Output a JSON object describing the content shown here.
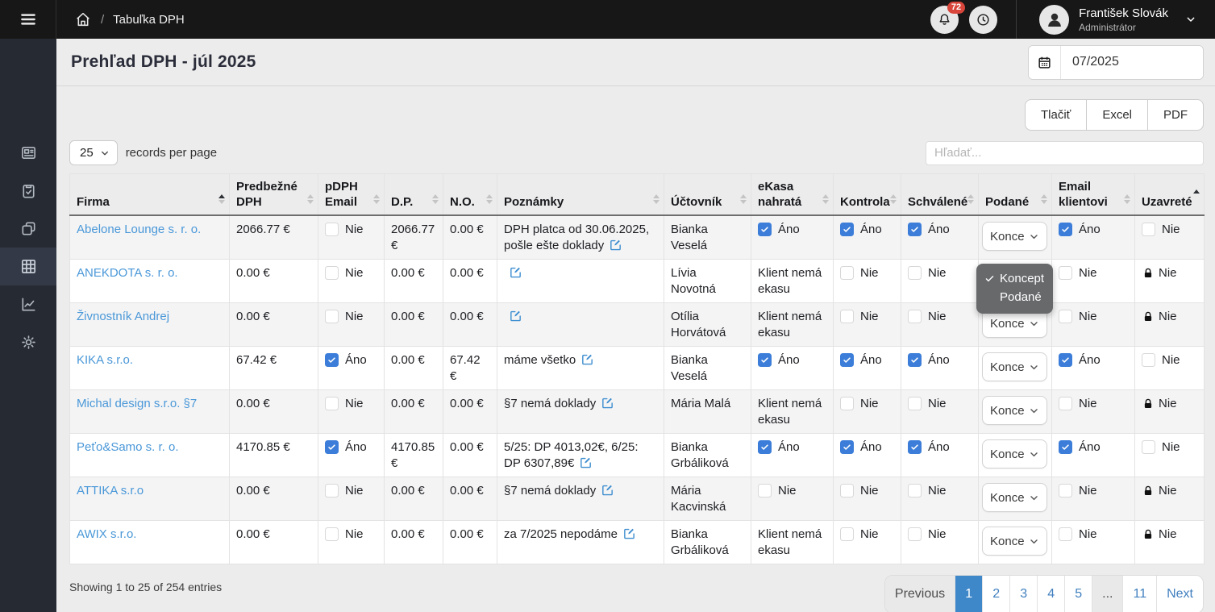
{
  "topbar": {
    "breadcrumb": "Tabuľka DPH",
    "notification_count": "72",
    "user": {
      "name": "František Slovák",
      "role": "Administrátor"
    }
  },
  "sidebar": {
    "items": [
      {
        "icon": "news-icon",
        "active": false
      },
      {
        "icon": "clipboard-check-icon",
        "active": false
      },
      {
        "icon": "copy-icon",
        "active": false
      },
      {
        "icon": "table-grid-icon",
        "active": true
      },
      {
        "icon": "chart-line-icon",
        "active": false
      },
      {
        "icon": "settings-gear-icon",
        "active": false
      }
    ]
  },
  "page": {
    "title": "Prehľad DPH - júl 2025",
    "date_value": "07/2025",
    "export_buttons": [
      "Tlačiť",
      "Excel",
      "PDF"
    ],
    "per_page": {
      "value": "25",
      "label": "records per page"
    },
    "search_placeholder": "Hľadať..."
  },
  "table": {
    "columns": [
      {
        "label": "Firma",
        "sort": "asc"
      },
      {
        "label": "Predbežné DPH",
        "sort": "both"
      },
      {
        "label": "pDPH Email",
        "sort": "both"
      },
      {
        "label": "D.P.",
        "sort": "both"
      },
      {
        "label": "N.O.",
        "sort": "both"
      },
      {
        "label": "Poznámky",
        "sort": "both"
      },
      {
        "label": "Účtovník",
        "sort": "both"
      },
      {
        "label": "eKasa nahratá",
        "sort": "both"
      },
      {
        "label": "Kontrola",
        "sort": "both"
      },
      {
        "label": "Schválené",
        "sort": "both"
      },
      {
        "label": "Podané",
        "sort": "both"
      },
      {
        "label": "Email klientovi",
        "sort": "both"
      },
      {
        "label": "Uzavreté",
        "sort": "asc-only"
      }
    ],
    "rows": [
      {
        "firma": "Abelone Lounge s. r. o.",
        "predbezne_dph": "2066.77 €",
        "pdph_email": {
          "checked": false,
          "label": "Nie"
        },
        "dp": "2066.77 €",
        "no": "0.00 €",
        "poznamky": "DPH platca od 30.06.2025, pošle ešte doklady",
        "uctovnik": "Bianka Veselá",
        "ekasa": {
          "type": "checkbox",
          "checked": true,
          "label": "Áno"
        },
        "kontrola": {
          "checked": true,
          "label": "Áno"
        },
        "schvalene": {
          "checked": true,
          "label": "Áno"
        },
        "podane": "Konce",
        "email_klientovi": {
          "checked": true,
          "label": "Áno"
        },
        "uzavrete": {
          "locked": false,
          "checked": false,
          "label": "Nie"
        }
      },
      {
        "firma": "ANEKDOTA s. r. o.",
        "predbezne_dph": "0.00 €",
        "pdph_email": {
          "checked": false,
          "label": "Nie"
        },
        "dp": "0.00 €",
        "no": "0.00 €",
        "poznamky": "",
        "uctovnik": "Lívia Novotná",
        "ekasa": {
          "type": "text",
          "label": "Klient nemá ekasu"
        },
        "kontrola": {
          "checked": false,
          "label": "Nie"
        },
        "schvalene": {
          "checked": false,
          "label": "Nie"
        },
        "podane": "Konce",
        "email_klientovi": {
          "checked": false,
          "label": "Nie"
        },
        "uzavrete": {
          "locked": true,
          "label": "Nie"
        }
      },
      {
        "firma": "Živnostník Andrej",
        "predbezne_dph": "0.00 €",
        "pdph_email": {
          "checked": false,
          "label": "Nie"
        },
        "dp": "0.00 €",
        "no": "0.00 €",
        "poznamky": "",
        "uctovnik": "Otília Horvátová",
        "ekasa": {
          "type": "text",
          "label": "Klient nemá ekasu"
        },
        "kontrola": {
          "checked": false,
          "label": "Nie"
        },
        "schvalene": {
          "checked": false,
          "label": "Nie"
        },
        "podane": "Konce",
        "email_klientovi": {
          "checked": false,
          "label": "Nie"
        },
        "uzavrete": {
          "locked": true,
          "label": "Nie"
        }
      },
      {
        "firma": "KIKA s.r.o.",
        "predbezne_dph": "67.42 €",
        "pdph_email": {
          "checked": true,
          "label": "Áno"
        },
        "dp": "0.00 €",
        "no": "67.42 €",
        "poznamky": "máme všetko",
        "uctovnik": "Bianka Veselá",
        "ekasa": {
          "type": "checkbox",
          "checked": true,
          "label": "Áno"
        },
        "kontrola": {
          "checked": true,
          "label": "Áno"
        },
        "schvalene": {
          "checked": true,
          "label": "Áno"
        },
        "podane": "Konce",
        "email_klientovi": {
          "checked": true,
          "label": "Áno"
        },
        "uzavrete": {
          "locked": false,
          "checked": false,
          "label": "Nie"
        }
      },
      {
        "firma": "Michal design s.r.o. §7",
        "predbezne_dph": "0.00 €",
        "pdph_email": {
          "checked": false,
          "label": "Nie"
        },
        "dp": "0.00 €",
        "no": "0.00 €",
        "poznamky": "§7 nemá doklady",
        "uctovnik": "Mária Malá",
        "ekasa": {
          "type": "text",
          "label": "Klient nemá ekasu"
        },
        "kontrola": {
          "checked": false,
          "label": "Nie"
        },
        "schvalene": {
          "checked": false,
          "label": "Nie"
        },
        "podane": "Konce",
        "email_klientovi": {
          "checked": false,
          "label": "Nie"
        },
        "uzavrete": {
          "locked": true,
          "label": "Nie"
        }
      },
      {
        "firma": "Peťo&Samo s. r. o.",
        "predbezne_dph": "4170.85 €",
        "pdph_email": {
          "checked": true,
          "label": "Áno"
        },
        "dp": "4170.85 €",
        "no": "0.00 €",
        "poznamky": "5/25: DP 4013,02€, 6/25: DP 6307,89€",
        "uctovnik": "Bianka Grbáliková",
        "ekasa": {
          "type": "checkbox",
          "checked": true,
          "label": "Áno"
        },
        "kontrola": {
          "checked": true,
          "label": "Áno"
        },
        "schvalene": {
          "checked": true,
          "label": "Áno"
        },
        "podane": "Konce",
        "email_klientovi": {
          "checked": true,
          "label": "Áno"
        },
        "uzavrete": {
          "locked": false,
          "checked": false,
          "label": "Nie"
        }
      },
      {
        "firma": "ATTIKA s.r.o",
        "predbezne_dph": "0.00 €",
        "pdph_email": {
          "checked": false,
          "label": "Nie"
        },
        "dp": "0.00 €",
        "no": "0.00 €",
        "poznamky": "§7 nemá doklady",
        "uctovnik": "Mária Kacvinská",
        "ekasa": {
          "type": "checkbox",
          "checked": false,
          "label": "Nie"
        },
        "kontrola": {
          "checked": false,
          "label": "Nie"
        },
        "schvalene": {
          "checked": false,
          "label": "Nie"
        },
        "podane": "Konce",
        "email_klientovi": {
          "checked": false,
          "label": "Nie"
        },
        "uzavrete": {
          "locked": true,
          "label": "Nie"
        }
      },
      {
        "firma": "AWIX s.r.o.",
        "predbezne_dph": "0.00 €",
        "pdph_email": {
          "checked": false,
          "label": "Nie"
        },
        "dp": "0.00 €",
        "no": "0.00 €",
        "poznamky": "za 7/2025 nepodáme",
        "uctovnik": "Bianka Grbáliková",
        "ekasa": {
          "type": "text",
          "label": "Klient nemá ekasu"
        },
        "kontrola": {
          "checked": false,
          "label": "Nie"
        },
        "schvalene": {
          "checked": false,
          "label": "Nie"
        },
        "podane": "Konce",
        "email_klientovi": {
          "checked": false,
          "label": "Nie"
        },
        "uzavrete": {
          "locked": true,
          "label": "Nie"
        }
      }
    ],
    "dropdown_open": {
      "options": [
        {
          "label": "Koncept",
          "selected": true
        },
        {
          "label": "Podané",
          "selected": false
        }
      ]
    }
  },
  "footer": {
    "summary": "Showing 1 to 25 of 254 entries",
    "pagination": {
      "prev": "Previous",
      "pages": [
        "1",
        "2",
        "3",
        "4",
        "5",
        "...",
        "11"
      ],
      "active": "1",
      "next": "Next"
    }
  },
  "colors": {
    "topbar_black": "#171717",
    "sidebar_dark": "#262b33",
    "checkbox_blue": "#3b7dd8",
    "link_blue": "#4a98d8",
    "badge_red": "#d8453a",
    "active_page_blue": "#3e87c9",
    "popup_gray": "#68696b"
  }
}
